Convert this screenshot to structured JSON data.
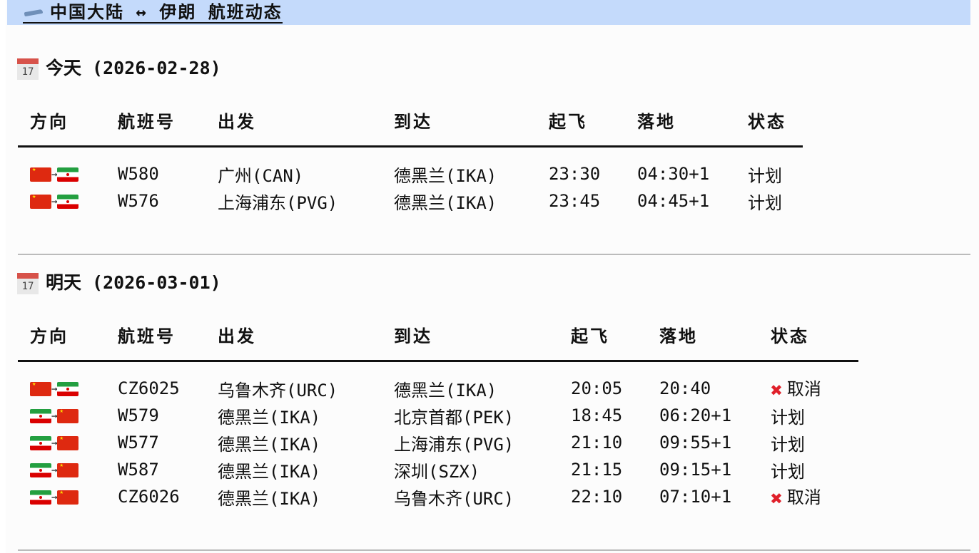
{
  "title": "中国大陆 ↔ 伊朗 航班动态",
  "columns": [
    "方向",
    "航班号",
    "出发",
    "到达",
    "起飞",
    "落地",
    "状态"
  ],
  "sections": [
    {
      "heading": "今天 (2026-02-28)",
      "calendar_day": "17",
      "rows": [
        {
          "from": "cn",
          "to": "ir",
          "flight": "W580",
          "dep": "广州(CAN)",
          "arr": "德黑兰(IKA)",
          "takeoff": "23:30",
          "land": "04:30+1",
          "status": "计划",
          "cancelled": false
        },
        {
          "from": "cn",
          "to": "ir",
          "flight": "W576",
          "dep": "上海浦东(PVG)",
          "arr": "德黑兰(IKA)",
          "takeoff": "23:45",
          "land": "04:45+1",
          "status": "计划",
          "cancelled": false
        }
      ]
    },
    {
      "heading": "明天 (2026-03-01)",
      "calendar_day": "17",
      "rows": [
        {
          "from": "cn",
          "to": "ir",
          "flight": "CZ6025",
          "dep": "乌鲁木齐(URC)",
          "arr": "德黑兰(IKA)",
          "takeoff": "20:05",
          "land": "20:40",
          "status": "取消",
          "cancelled": true
        },
        {
          "from": "ir",
          "to": "cn",
          "flight": "W579",
          "dep": "德黑兰(IKA)",
          "arr": "北京首都(PEK)",
          "takeoff": "18:45",
          "land": "06:20+1",
          "status": "计划",
          "cancelled": false
        },
        {
          "from": "ir",
          "to": "cn",
          "flight": "W577",
          "dep": "德黑兰(IKA)",
          "arr": "上海浦东(PVG)",
          "takeoff": "21:10",
          "land": "09:55+1",
          "status": "计划",
          "cancelled": false
        },
        {
          "from": "ir",
          "to": "cn",
          "flight": "W587",
          "dep": "德黑兰(IKA)",
          "arr": "深圳(SZX)",
          "takeoff": "21:15",
          "land": "09:15+1",
          "status": "计划",
          "cancelled": false
        },
        {
          "from": "ir",
          "to": "cn",
          "flight": "CZ6026",
          "dep": "德黑兰(IKA)",
          "arr": "乌鲁木齐(URC)",
          "takeoff": "22:10",
          "land": "07:10+1",
          "status": "取消",
          "cancelled": true
        }
      ]
    }
  ],
  "colors": {
    "header_bg": "#c4dafb",
    "cancel": "#e0202a"
  }
}
